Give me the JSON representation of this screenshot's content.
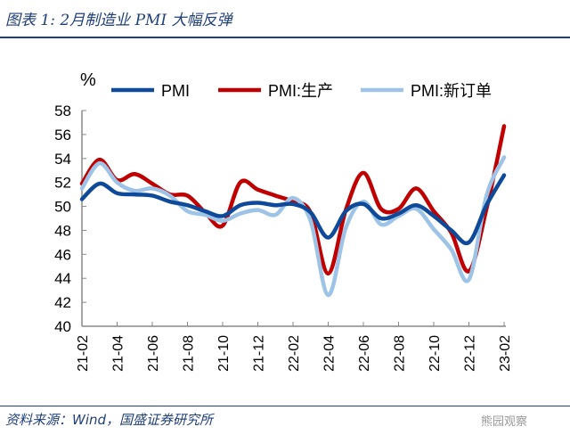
{
  "title": "图表 1:  2月制造业 PMI 大幅反弹",
  "source": "资料来源：Wind，国盛证券研究所",
  "watermark": "熊园观察",
  "chart_data": {
    "type": "line",
    "ylabel": "%",
    "ylim": [
      40,
      58
    ],
    "yticks": [
      40,
      42,
      44,
      46,
      48,
      50,
      52,
      54,
      56,
      58
    ],
    "legend": "top",
    "x": [
      "21-02",
      "21-03",
      "21-04",
      "21-05",
      "21-06",
      "21-07",
      "21-08",
      "21-09",
      "21-10",
      "21-11",
      "21-12",
      "22-01",
      "22-02",
      "22-03",
      "22-04",
      "22-05",
      "22-06",
      "22-07",
      "22-08",
      "22-09",
      "22-10",
      "22-11",
      "22-12",
      "23-01",
      "23-02"
    ],
    "xticklabels": [
      "21-02",
      "21-04",
      "21-06",
      "21-08",
      "21-10",
      "21-12",
      "22-02",
      "22-04",
      "22-06",
      "22-08",
      "22-10",
      "22-12",
      "23-02"
    ],
    "series": [
      {
        "name": "PMI",
        "color": "#0e4a99",
        "values": [
          50.6,
          51.9,
          51.1,
          51.0,
          50.9,
          50.4,
          50.1,
          49.6,
          49.2,
          50.1,
          50.3,
          50.1,
          50.2,
          49.5,
          47.4,
          49.6,
          50.2,
          49.0,
          49.4,
          50.1,
          49.2,
          48.0,
          47.0,
          50.1,
          52.6
        ]
      },
      {
        "name": "PMI:生产",
        "color": "#c00000",
        "values": [
          51.9,
          53.9,
          52.2,
          52.7,
          51.9,
          51.0,
          50.9,
          49.5,
          48.4,
          52.0,
          51.4,
          50.9,
          50.4,
          49.5,
          44.4,
          49.7,
          52.8,
          49.8,
          49.8,
          51.5,
          49.6,
          47.8,
          44.6,
          49.8,
          56.7
        ]
      },
      {
        "name": "PMI:新订单",
        "color": "#9dc3e6",
        "values": [
          51.5,
          53.6,
          52.0,
          51.3,
          51.5,
          50.9,
          49.6,
          49.3,
          48.8,
          49.4,
          49.7,
          49.3,
          50.7,
          48.8,
          42.6,
          48.2,
          50.4,
          48.5,
          49.2,
          49.8,
          48.1,
          46.4,
          43.9,
          50.9,
          54.1
        ]
      }
    ]
  }
}
